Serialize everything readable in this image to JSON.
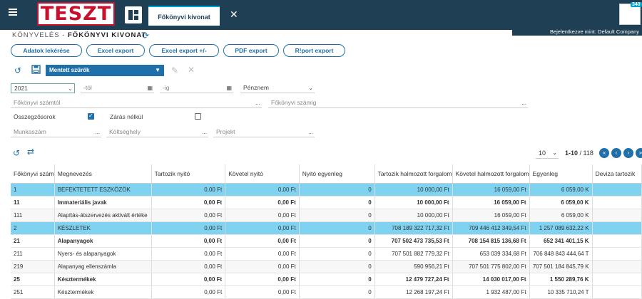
{
  "header": {
    "logo_text": "TESZT",
    "tab_label": "Főkönyvi kivonat",
    "close_glyph": "✕",
    "avatar_badge": "340",
    "logged_in": "Bejelentkezve mint: Default Company"
  },
  "breadcrumb": {
    "parent": "KÖNYVELÉS -",
    "current": "FŐKÖNYVI KIVONAT"
  },
  "actions": {
    "fetch": "Adatok lekérése",
    "excel": "Excel export",
    "excel_pm": "Excel export +/-",
    "pdf": "PDF export",
    "riport": "R!port export"
  },
  "filters": {
    "saved_filters": "Mentett szűrők",
    "year": "2021",
    "from_placeholder": "-tól",
    "to_placeholder": "-ig",
    "currency_placeholder": "Pénznem",
    "account_from": "Főkönyvi számtól",
    "account_to": "Főkönyvi számig",
    "subtotals_label": "Összegzősorok",
    "subtotals_checked": true,
    "no_closing_label": "Zárás nélkül",
    "no_closing_checked": false,
    "work_number": "Munkaszám",
    "cost_center": "Költséghely",
    "project": "Projekt",
    "dots": "..."
  },
  "pager": {
    "page_size": "10",
    "range": "1-10",
    "total": "/ 118"
  },
  "columns": [
    "Főkönyvi szám",
    "Megnevezés",
    "Tartozik nyitó",
    "Követel nyitó",
    "Nyitó egyenleg",
    "Tartozik halmozott forgalom",
    "Követel halmozott forgalom",
    "Egyenleg",
    "Deviza tartozik"
  ],
  "rows": [
    {
      "cells": [
        "1",
        "BEFEKTETETT ESZKÖZÖK",
        "0,00 Ft",
        "0,00 Ft",
        "0",
        "10 000,00 Ft",
        "16 059,00 Ft",
        "6 059,00 K",
        ""
      ],
      "style": "hl"
    },
    {
      "cells": [
        "11",
        "Immateriális javak",
        "0,00 Ft",
        "0,00 Ft",
        "0",
        "10 000,00 Ft",
        "16 059,00 Ft",
        "6 059,00 K",
        ""
      ],
      "style": "bold"
    },
    {
      "cells": [
        "111",
        "Alapítás-átszervezés aktivált értéke",
        "0,00 Ft",
        "0,00 Ft",
        "0",
        "10 000,00 Ft",
        "16 059,00 Ft",
        "6 059,00 K",
        ""
      ],
      "style": "alt"
    },
    {
      "cells": [
        "2",
        "KÉSZLETEK",
        "0,00 Ft",
        "0,00 Ft",
        "0",
        "708 189 322 717,32 Ft",
        "709 446 412 349,54 Ft",
        "1 257 089 632,22 K",
        ""
      ],
      "style": "hl"
    },
    {
      "cells": [
        "21",
        "Alapanyagok",
        "0,00 Ft",
        "0,00 Ft",
        "0",
        "707 502 473 735,53 Ft",
        "708 154 815 136,68 Ft",
        "652 341 401,15 K",
        ""
      ],
      "style": "bold"
    },
    {
      "cells": [
        "211",
        "Nyers- és alapanyagok",
        "0,00 Ft",
        "0,00 Ft",
        "0",
        "707 501 882 779,32 Ft",
        "653 039 334,68 Ft",
        "706 848 843 444,64 T",
        ""
      ],
      "style": ""
    },
    {
      "cells": [
        "219",
        "Alapanyag ellenszámla",
        "0,00 Ft",
        "0,00 Ft",
        "0",
        "590 956,21 Ft",
        "707 501 775 802,00 Ft",
        "707 501 184 845,79 K",
        ""
      ],
      "style": "alt"
    },
    {
      "cells": [
        "25",
        "Késztermékek",
        "0,00 Ft",
        "0,00 Ft",
        "0",
        "12 479 727,24 Ft",
        "14 030 017,00 Ft",
        "1 550 289,76 K",
        ""
      ],
      "style": "bold"
    },
    {
      "cells": [
        "251",
        "Késztermékek",
        "0,00 Ft",
        "0,00 Ft",
        "0",
        "12 268 197,24 Ft",
        "1 932 487,00 Ft",
        "10 335 710,24 T",
        ""
      ],
      "style": ""
    }
  ]
}
